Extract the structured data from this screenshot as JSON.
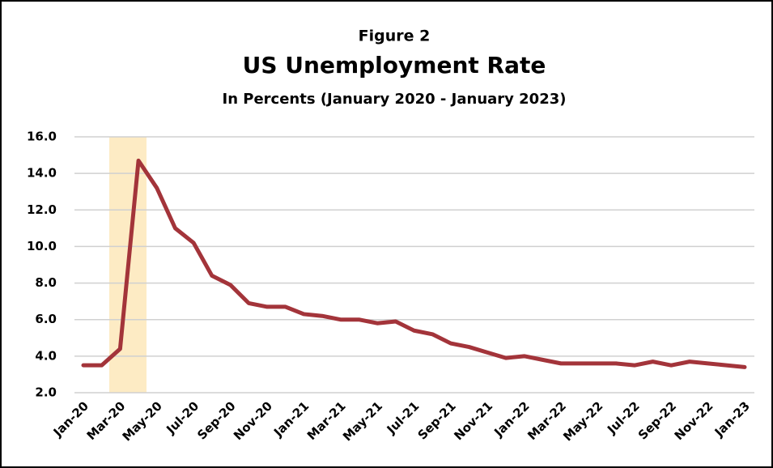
{
  "chart_data": {
    "type": "line",
    "figure_label": "Figure 2",
    "title": "US Unemployment Rate",
    "subtitle": "In Percents (January 2020 - January 2023)",
    "categories": [
      "Jan-20",
      null,
      "Mar-20",
      null,
      "May-20",
      null,
      "Jul-20",
      null,
      "Sep-20",
      null,
      "Nov-20",
      null,
      "Jan-21",
      null,
      "Mar-21",
      null,
      "May-21",
      null,
      "Jul-21",
      null,
      "Sep-21",
      null,
      "Nov-21",
      null,
      "Jan-22",
      null,
      "Mar-22",
      null,
      "May-22",
      null,
      "Jul-22",
      null,
      "Sep-22",
      null,
      "Nov-22",
      null,
      "Jan-23"
    ],
    "series": [
      {
        "name": "Unemployment Rate",
        "color": "#a3343a",
        "values": [
          3.5,
          3.5,
          4.4,
          14.7,
          13.2,
          11.0,
          10.2,
          8.4,
          7.9,
          6.9,
          6.7,
          6.7,
          6.3,
          6.2,
          6.0,
          6.0,
          5.8,
          5.9,
          5.4,
          5.2,
          4.7,
          4.5,
          4.2,
          3.9,
          4.0,
          3.8,
          3.6,
          3.6,
          3.6,
          3.6,
          3.5,
          3.7,
          3.5,
          3.7,
          3.6,
          3.5,
          3.4
        ]
      }
    ],
    "ylim": [
      2,
      16
    ],
    "yticks": [
      {
        "value": 2,
        "label": "2.0"
      },
      {
        "value": 4,
        "label": "4.0"
      },
      {
        "value": 6,
        "label": "6.0"
      },
      {
        "value": 8,
        "label": "8.0"
      },
      {
        "value": 10,
        "label": "10.0"
      },
      {
        "value": 12,
        "label": "12.0"
      },
      {
        "value": 14,
        "label": "14.0"
      },
      {
        "value": 16,
        "label": "16.0"
      }
    ],
    "grid": true
  }
}
